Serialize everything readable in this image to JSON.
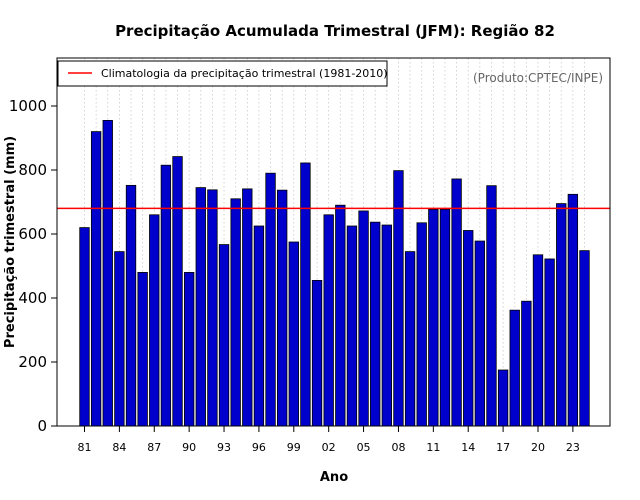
{
  "chart_data": {
    "type": "bar",
    "title": "Precipitação Acumulada Trimestral (JFM): Região 82",
    "xlabel": "Ano",
    "ylabel": "Precipitação trimestral (mm)",
    "credit": "(Produto:CPTEC/INPE)",
    "ylim": [
      0,
      1150
    ],
    "yticks": [
      0,
      200,
      400,
      600,
      800,
      1000
    ],
    "grid": "vertical dotted lines at each bar",
    "legend_position": "top-left",
    "categories": [
      "81",
      "82",
      "83",
      "84",
      "85",
      "86",
      "87",
      "88",
      "89",
      "90",
      "91",
      "92",
      "93",
      "94",
      "95",
      "96",
      "97",
      "98",
      "99",
      "00",
      "01",
      "02",
      "03",
      "04",
      "05",
      "06",
      "07",
      "08",
      "09",
      "10",
      "11",
      "12",
      "13",
      "14",
      "15",
      "16",
      "17",
      "18",
      "19",
      "20",
      "21",
      "22",
      "23",
      "24"
    ],
    "x_tick_labels": [
      "81",
      "84",
      "87",
      "90",
      "93",
      "96",
      "99",
      "02",
      "05",
      "08",
      "11",
      "14",
      "17",
      "20",
      "23"
    ],
    "series": [
      {
        "name": "Precipitação trimestral",
        "color": "#0000CD",
        "values": [
          620,
          920,
          955,
          545,
          752,
          480,
          660,
          815,
          842,
          480,
          745,
          738,
          567,
          710,
          741,
          625,
          790,
          737,
          575,
          822,
          455,
          660,
          690,
          625,
          672,
          637,
          628,
          798,
          545,
          635,
          677,
          677,
          772,
          611,
          578,
          751,
          175,
          362,
          390,
          535,
          522,
          695,
          724,
          548
        ]
      }
    ],
    "reference_line": {
      "label": "Climatologia da precipitação trimestral (1981-2010)",
      "value": 680,
      "color": "#FF0000"
    }
  }
}
